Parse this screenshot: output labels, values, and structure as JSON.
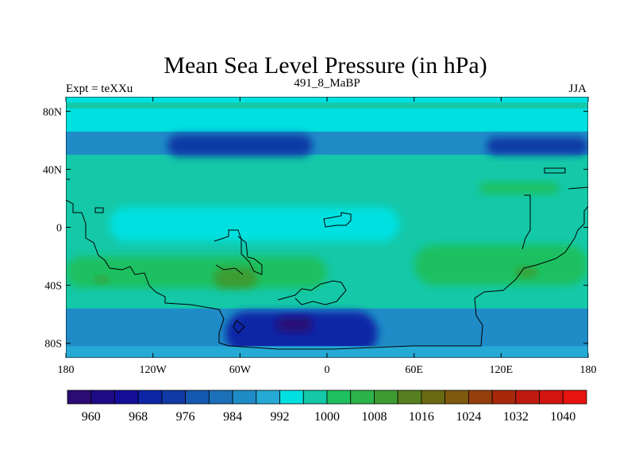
{
  "chart_data": {
    "type": "heatmap",
    "title": "Mean Sea Level Pressure (in hPa)",
    "left_string": "Expt = teXXu",
    "center_string": "491_8_MaBP",
    "right_string": "JJA",
    "xlim": [
      -180,
      180
    ],
    "ylim": [
      -90,
      90
    ],
    "x_ticks": [
      {
        "value": -180,
        "label": "180"
      },
      {
        "value": -120,
        "label": "120W"
      },
      {
        "value": -60,
        "label": "60W"
      },
      {
        "value": 0,
        "label": "0"
      },
      {
        "value": 60,
        "label": "60E"
      },
      {
        "value": 120,
        "label": "120E"
      },
      {
        "value": 180,
        "label": "180"
      }
    ],
    "y_ticks": [
      {
        "value": 80,
        "label": "80N"
      },
      {
        "value": 40,
        "label": "40N"
      },
      {
        "value": 0,
        "label": "0"
      },
      {
        "value": -40,
        "label": "40S"
      },
      {
        "value": -80,
        "label": "80S"
      }
    ],
    "colorbar": {
      "levels": [
        960,
        964,
        968,
        972,
        976,
        980,
        984,
        988,
        992,
        996,
        1000,
        1004,
        1008,
        1012,
        1016,
        1020,
        1024,
        1028,
        1032,
        1036,
        1040,
        1044
      ],
      "colors": [
        "#2b0b74",
        "#1f0a86",
        "#160e98",
        "#0d25a6",
        "#103aa5",
        "#1458b0",
        "#1b70b8",
        "#1f8cc7",
        "#25aad6",
        "#00e0e0",
        "#14c8a8",
        "#1fc060",
        "#2cb44a",
        "#3e9b32",
        "#567f20",
        "#6a6a12",
        "#7f5a0e",
        "#953e0c",
        "#a8280c",
        "#bf1a10",
        "#d4140f",
        "#e81410"
      ],
      "tick_labels": [
        "960",
        "968",
        "976",
        "984",
        "992",
        "1000",
        "1008",
        "1016",
        "1024",
        "1032",
        "1040"
      ]
    },
    "base_value": 1000,
    "fields": [
      {
        "name": "northern-low-belt",
        "lon": [
          -180,
          180
        ],
        "lat": [
          50,
          78
        ],
        "value": 990
      },
      {
        "name": "northern-mid-band",
        "lon": [
          -180,
          180
        ],
        "lat": [
          66,
          82
        ],
        "value": 996
      },
      {
        "name": "north-pacific-low",
        "lon": [
          -110,
          -10
        ],
        "lat": [
          49,
          64
        ],
        "value": 978
      },
      {
        "name": "north-atlantic-low",
        "lon": [
          110,
          180
        ],
        "lat": [
          50,
          62
        ],
        "value": 978
      },
      {
        "name": "north-edge-band",
        "lon": [
          -180,
          180
        ],
        "lat": [
          86,
          90
        ],
        "value": 996
      },
      {
        "name": "tropical-low",
        "lon": [
          -150,
          50
        ],
        "lat": [
          -10,
          14
        ],
        "value": 996
      },
      {
        "name": "asian-high",
        "lon": [
          105,
          160
        ],
        "lat": [
          23,
          31
        ],
        "value": 1006
      },
      {
        "name": "southern-high-west",
        "lon": [
          -180,
          0
        ],
        "lat": [
          -42,
          -20
        ],
        "value": 1006
      },
      {
        "name": "southern-high-east",
        "lon": [
          60,
          180
        ],
        "lat": [
          -40,
          -12
        ],
        "value": 1006
      },
      {
        "name": "southern-high-core-1",
        "lon": [
          -160,
          -150
        ],
        "lat": [
          -38,
          -34
        ],
        "value": 1014
      },
      {
        "name": "southern-high-core-2",
        "lon": [
          -78,
          -48
        ],
        "lat": [
          -42,
          -28
        ],
        "value": 1014
      },
      {
        "name": "southern-high-core-3",
        "lon": [
          130,
          145
        ],
        "lat": [
          -34,
          -28
        ],
        "value": 1014
      },
      {
        "name": "southern-low-band",
        "lon": [
          -180,
          180
        ],
        "lat": [
          -84,
          -56
        ],
        "value": 990
      },
      {
        "name": "southern-deep-low",
        "lon": [
          -70,
          35
        ],
        "lat": [
          -88,
          -58
        ],
        "value": 974
      },
      {
        "name": "southern-core-low",
        "lon": [
          -35,
          -10
        ],
        "lat": [
          -72,
          -62
        ],
        "value": 962
      },
      {
        "name": "southern-edge-band",
        "lon": [
          -180,
          180
        ],
        "lat": [
          -90,
          -82
        ],
        "value": 994
      }
    ]
  }
}
